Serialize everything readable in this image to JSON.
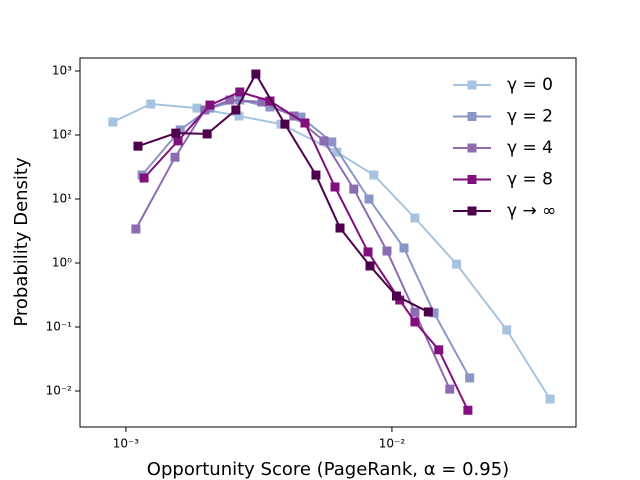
{
  "chart_data": {
    "type": "line",
    "x_label": "Opportunity Score (PageRank, α = 0.95)",
    "y_label": "Probability Density",
    "xscale": "log",
    "yscale": "log",
    "xlim": [
      0.000672,
      0.0492
    ],
    "ylim": [
      0.00274,
      1597
    ],
    "xticks": [
      {
        "value": 0.001,
        "label": "10⁻³"
      },
      {
        "value": 0.01,
        "label": "10⁻²"
      }
    ],
    "yticks": [
      {
        "value": 0.01,
        "label": "10⁻²"
      },
      {
        "value": 0.1,
        "label": "10⁻¹"
      },
      {
        "value": 1,
        "label": "10⁰"
      },
      {
        "value": 10,
        "label": "10¹"
      },
      {
        "value": 100,
        "label": "10²"
      },
      {
        "value": 1000,
        "label": "10³"
      }
    ],
    "legend": "upper right",
    "series": [
      {
        "name": "γ = 0",
        "color": "#a6c4e0",
        "x": [
          0.000893,
          0.00124,
          0.00185,
          0.00266,
          0.00383,
          0.00621,
          0.00855,
          0.0122,
          0.0175,
          0.027,
          0.0393
        ],
        "values": [
          160,
          305,
          263,
          198,
          148,
          54,
          23.7,
          5.05,
          0.96,
          0.09,
          0.0075
        ]
      },
      {
        "name": "γ = 2",
        "color": "#8c96c6",
        "x": [
          0.00115,
          0.0016,
          0.00207,
          0.00268,
          0.00348,
          0.00455,
          0.00594,
          0.0082,
          0.0111,
          0.0144,
          0.0196
        ],
        "values": [
          23.7,
          120,
          263,
          352,
          274,
          191,
          78,
          10,
          1.72,
          0.166,
          0.016
        ]
      },
      {
        "name": "γ = 4",
        "color": "#8c6bb1",
        "x": [
          0.00109,
          0.00153,
          0.00198,
          0.00246,
          0.00325,
          0.00428,
          0.00555,
          0.00719,
          0.00958,
          0.0122,
          0.0165
        ],
        "values": [
          3.4,
          45,
          246,
          352,
          328,
          198,
          81,
          14.3,
          1.54,
          0.17,
          0.0107
        ]
      },
      {
        "name": "γ = 8",
        "color": "#810f7c",
        "x": [
          0.00117,
          0.00157,
          0.00207,
          0.00268,
          0.00348,
          0.00471,
          0.00611,
          0.00813,
          0.0107,
          0.0122,
          0.015,
          0.0193
        ],
        "values": [
          21.3,
          81,
          294,
          470,
          340,
          154,
          15.4,
          1.49,
          0.264,
          0.12,
          0.044,
          0.005
        ]
      },
      {
        "name": "γ → ∞",
        "color": "#4d004b",
        "x": [
          0.00111,
          0.00154,
          0.00202,
          0.00259,
          0.00308,
          0.00396,
          0.00518,
          0.00638,
          0.00827,
          0.0104,
          0.0137
        ],
        "values": [
          67,
          107,
          104,
          246,
          897,
          148,
          23.7,
          3.52,
          0.9,
          0.305,
          0.172
        ]
      }
    ]
  }
}
